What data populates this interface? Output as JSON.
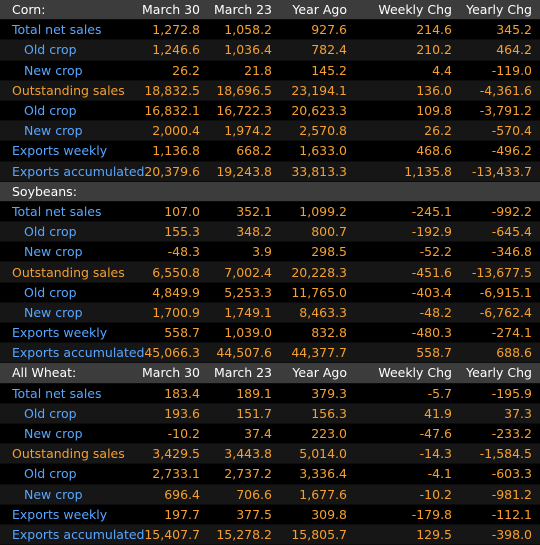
{
  "sections": [
    {
      "title": "Corn:",
      "columns": [
        "March 30",
        "March 23",
        "Year Ago",
        "Weekly Chg",
        "Yearly Chg"
      ],
      "rows": [
        {
          "label": "Total net sales",
          "values": [
            "1,272.8",
            "1,058.2",
            "927.6",
            "214.6",
            "345.2"
          ]
        },
        {
          "label": "Old crop",
          "values": [
            "1,246.6",
            "1,036.4",
            "782.4",
            "210.2",
            "464.2"
          ]
        },
        {
          "label": "New crop",
          "values": [
            "26.2",
            "21.8",
            "145.2",
            "4.4",
            "-119.0"
          ]
        },
        {
          "label": "Outstanding sales",
          "values": [
            "18,832.5",
            "18,696.5",
            "23,194.1",
            "136.0",
            "-4,361.6"
          ]
        },
        {
          "label": "Old crop",
          "values": [
            "16,832.1",
            "16,722.3",
            "20,623.3",
            "109.8",
            "-3,791.2"
          ]
        },
        {
          "label": "New crop",
          "values": [
            "2,000.4",
            "1,974.2",
            "2,570.8",
            "26.2",
            "-570.4"
          ]
        },
        {
          "label": "Exports weekly",
          "values": [
            "1,136.8",
            "668.2",
            "1,633.0",
            "468.6",
            "-496.2"
          ]
        },
        {
          "label": "Exports accumulated",
          "values": [
            "20,379.6",
            "19,243.8",
            "33,813.3",
            "1,135.8",
            "-13,433.7"
          ]
        }
      ]
    },
    {
      "title": "Soybeans:",
      "rows": [
        {
          "label": "Total net sales",
          "values": [
            "107.0",
            "352.1",
            "1,099.2",
            "-245.1",
            "-992.2"
          ]
        },
        {
          "label": "Old crop",
          "values": [
            "155.3",
            "348.2",
            "800.7",
            "-192.9",
            "-645.4"
          ]
        },
        {
          "label": "New crop",
          "values": [
            "-48.3",
            "3.9",
            "298.5",
            "-52.2",
            "-346.8"
          ]
        },
        {
          "label": "Outstanding sales",
          "values": [
            "6,550.8",
            "7,002.4",
            "20,228.3",
            "-451.6",
            "-13,677.5"
          ]
        },
        {
          "label": "Old crop",
          "values": [
            "4,849.9",
            "5,253.3",
            "11,765.0",
            "-403.4",
            "-6,915.1"
          ]
        },
        {
          "label": "New crop",
          "values": [
            "1,700.9",
            "1,749.1",
            "8,463.3",
            "-48.2",
            "-6,762.4"
          ]
        },
        {
          "label": "Exports weekly",
          "values": [
            "558.7",
            "1,039.0",
            "832.8",
            "-480.3",
            "-274.1"
          ]
        },
        {
          "label": "Exports accumulated",
          "values": [
            "45,066.3",
            "44,507.6",
            "44,377.7",
            "558.7",
            "688.6"
          ]
        }
      ]
    },
    {
      "title": "All Wheat:",
      "columns": [
        "March 30",
        "March 23",
        "Year Ago",
        "Weekly Chg",
        "Yearly Chg"
      ],
      "rows": [
        {
          "label": "Total net sales",
          "values": [
            "183.4",
            "189.1",
            "379.3",
            "-5.7",
            "-195.9"
          ]
        },
        {
          "label": "Old crop",
          "values": [
            "193.6",
            "151.7",
            "156.3",
            "41.9",
            "37.3"
          ]
        },
        {
          "label": "New crop",
          "values": [
            "-10.2",
            "37.4",
            "223.0",
            "-47.6",
            "-233.2"
          ]
        },
        {
          "label": "Outstanding sales",
          "values": [
            "3,429.5",
            "3,443.8",
            "5,014.0",
            "-14.3",
            "-1,584.5"
          ]
        },
        {
          "label": "Old crop",
          "values": [
            "2,733.1",
            "2,737.2",
            "3,336.4",
            "-4.1",
            "-603.3"
          ]
        },
        {
          "label": "New crop",
          "values": [
            "696.4",
            "706.6",
            "1,677.6",
            "-10.2",
            "-981.2"
          ]
        },
        {
          "label": "Exports weekly",
          "values": [
            "197.7",
            "377.5",
            "309.8",
            "-179.8",
            "-112.1"
          ]
        },
        {
          "label": "Exports accumulated",
          "values": [
            "15,407.7",
            "15,278.2",
            "15,805.7",
            "129.5",
            "-398.0"
          ]
        }
      ]
    }
  ]
}
